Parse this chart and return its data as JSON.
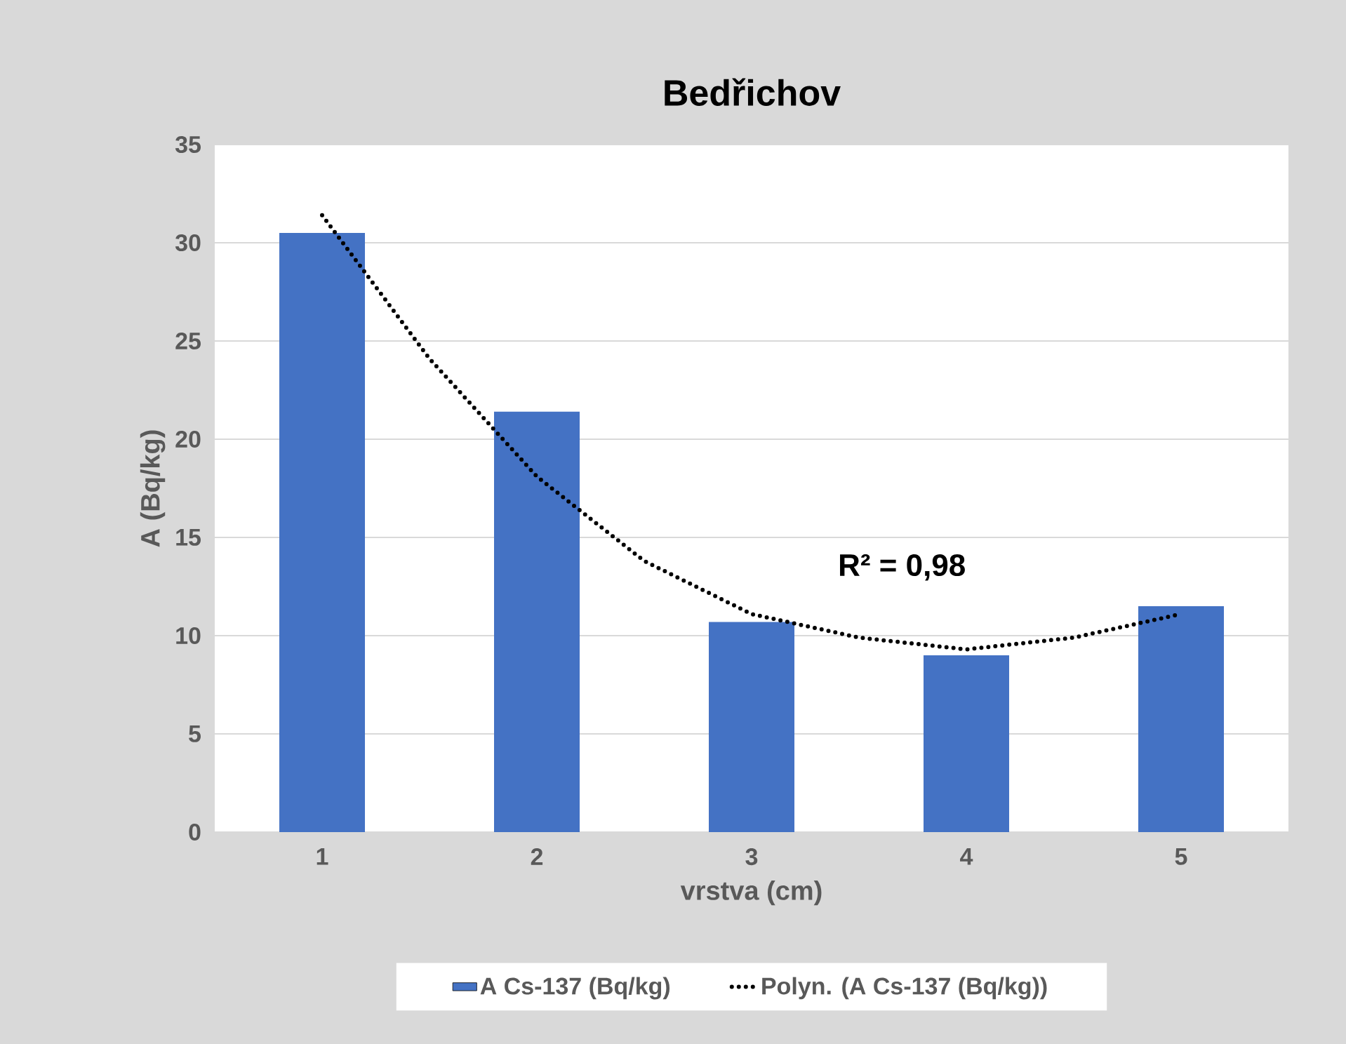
{
  "chart_data": {
    "type": "bar",
    "title": "Bedřichov",
    "xlabel": "vrstva (cm)",
    "ylabel": "A (Bq/kg)",
    "x": [
      1,
      2,
      3,
      4,
      5
    ],
    "xlim": [
      0.5,
      5.5
    ],
    "xticks": [
      1,
      2,
      3,
      4,
      5
    ],
    "ylim": [
      0,
      35
    ],
    "yticks": [
      0,
      5,
      10,
      15,
      20,
      25,
      30,
      35
    ],
    "grid": "y",
    "legend": "bottom",
    "series": [
      {
        "name": "A Cs-137 (Bq/kg)",
        "color": "#4472c4",
        "values": [
          30.5,
          21.4,
          10.7,
          9.0,
          11.5
        ]
      },
      {
        "name": "Polyn. (A Cs-137 (Bq/kg))",
        "type": "line",
        "color": "#000000",
        "line_style": "dotted",
        "x": [
          1,
          1.5,
          2,
          2.5,
          3,
          3.5,
          4,
          4.5,
          5
        ],
        "values": [
          31.4,
          24.1,
          18.1,
          13.8,
          11.1,
          9.9,
          9.3,
          9.9,
          11.1
        ]
      }
    ],
    "annotations": [
      "R² = 0,98"
    ]
  }
}
